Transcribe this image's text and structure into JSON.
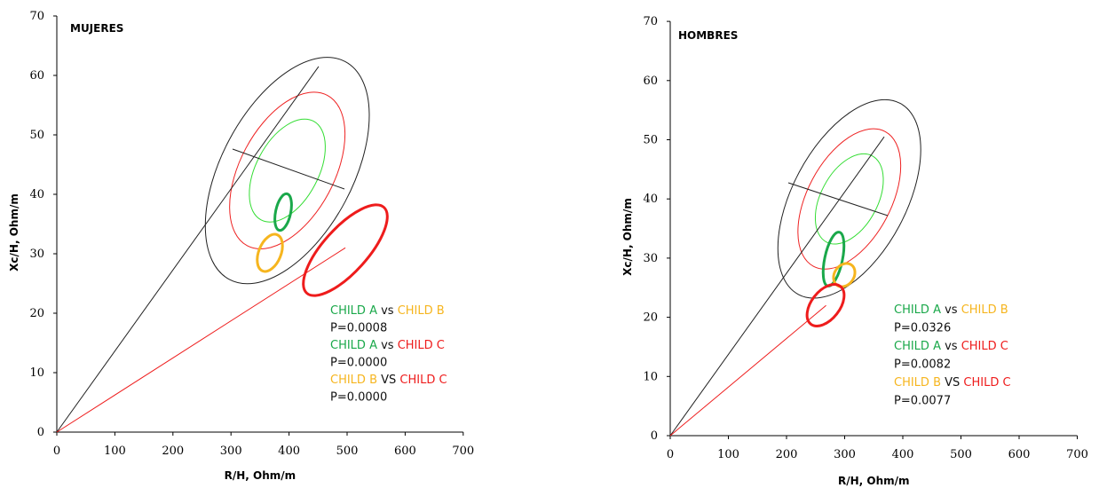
{
  "colors": {
    "A": "#1aa84a",
    "B": "#f6b51e",
    "C": "#ee1c1c",
    "text": "#111111",
    "ref50": "#33dd33",
    "ref75": "#ee2222",
    "ref95": "#222222"
  },
  "chart_data": [
    {
      "type": "scatter",
      "title": "MUJERES",
      "xlabel": "R/H, Ohm/m",
      "ylabel": "Xc/H, Ohm/m",
      "xlim": [
        0,
        700
      ],
      "ylim": [
        0,
        70
      ],
      "xticks": [
        "0",
        "100",
        "200",
        "300",
        "400",
        "500",
        "600",
        "700"
      ],
      "yticks": [
        "0",
        "10",
        "20",
        "30",
        "40",
        "50",
        "60",
        "70"
      ],
      "grid": false,
      "reference_ellipses": {
        "center": [
          397,
          44
        ],
        "tolerance_levels": [
          "50%",
          "75%",
          "95%"
        ]
      },
      "vectors": [
        {
          "from": [
            0,
            0
          ],
          "to": [
            451,
            61.5
          ],
          "color": "#222222"
        },
        {
          "from": [
            0,
            0
          ],
          "to": [
            497,
            31
          ],
          "color": "#ee1c1c"
        }
      ],
      "confidence_ellipses": [
        {
          "group": "CHILD A",
          "center": [
            390,
            38
          ],
          "color": "#1aa84a"
        },
        {
          "group": "CHILD B",
          "center": [
            366,
            30.5
          ],
          "color": "#f6b51e"
        },
        {
          "group": "CHILD C",
          "center": [
            497,
            30.5
          ],
          "color": "#ee1c1c"
        }
      ],
      "annotations": [
        {
          "left": "CHILD A",
          "sep": " vs ",
          "right": "CHILD B",
          "p": "P=0.0008",
          "lc": "A",
          "rc": "B"
        },
        {
          "left": "CHILD A",
          "sep": " vs ",
          "right": "CHILD C",
          "p": "P=0.0000",
          "lc": "A",
          "rc": "C"
        },
        {
          "left": "CHILD B",
          "sep": " VS ",
          "right": "CHILD C",
          "p": "P=0.0000",
          "lc": "B",
          "rc": "C"
        }
      ]
    },
    {
      "type": "scatter",
      "title": "HOMBRES",
      "xlabel": "R/H, Ohm/m",
      "ylabel": "Xc/H, Ohm/m",
      "xlim": [
        0,
        700
      ],
      "ylim": [
        0,
        70
      ],
      "xticks": [
        "0",
        "100",
        "200",
        "300",
        "400",
        "500",
        "600",
        "700"
      ],
      "yticks": [
        "0",
        "10",
        "20",
        "30",
        "40",
        "50",
        "60",
        "70"
      ],
      "grid": false,
      "reference_ellipses": {
        "center": [
          308,
          40
        ],
        "tolerance_levels": [
          "50%",
          "75%",
          "95%"
        ]
      },
      "vectors": [
        {
          "from": [
            0,
            0
          ],
          "to": [
            368,
            50.5
          ],
          "color": "#222222"
        },
        {
          "from": [
            0,
            0
          ],
          "to": [
            268,
            22
          ],
          "color": "#ee1c1c"
        }
      ],
      "confidence_ellipses": [
        {
          "group": "CHILD A",
          "center": [
            280,
            29.5
          ],
          "color": "#1aa84a"
        },
        {
          "group": "CHILD B",
          "center": [
            300,
            27
          ],
          "color": "#f6b51e"
        },
        {
          "group": "CHILD C",
          "center": [
            268,
            21.5
          ],
          "color": "#ee1c1c"
        }
      ],
      "annotations": [
        {
          "left": "CHILD A",
          "sep": " vs ",
          "right": "CHILD B",
          "p": "P=0.0326",
          "lc": "A",
          "rc": "B"
        },
        {
          "left": "CHILD A",
          "sep": " vs ",
          "right": "CHILD C",
          "p": "P=0.0082",
          "lc": "A",
          "rc": "C"
        },
        {
          "left": "CHILD B",
          "sep": " VS ",
          "right": "CHILD C",
          "p": "P=0.0077",
          "lc": "B",
          "rc": "C"
        }
      ]
    }
  ]
}
